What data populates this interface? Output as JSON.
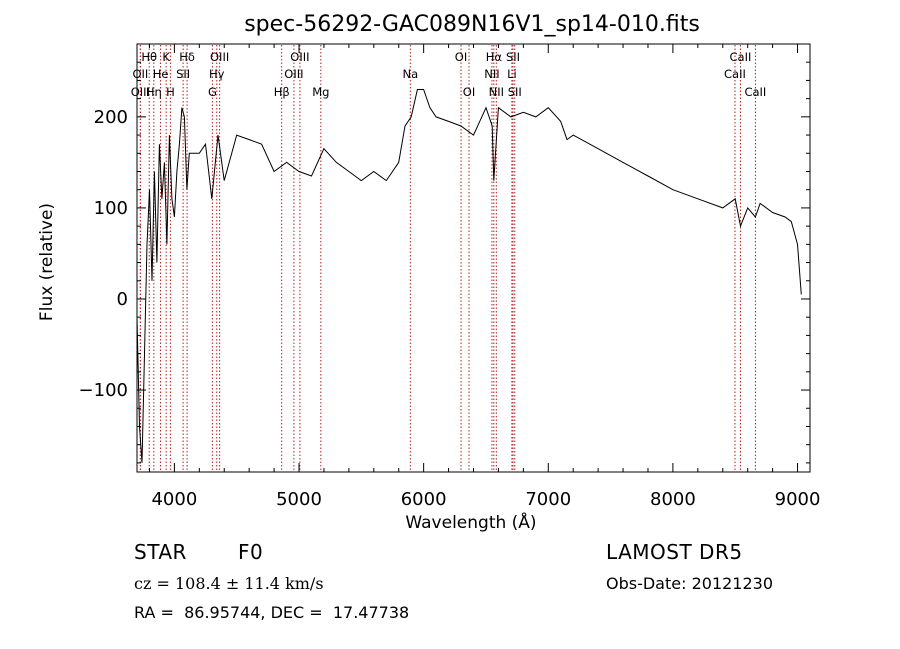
{
  "chart_data": {
    "type": "line",
    "title": "spec-56292-GAC089N16V1_sp14-010.fits",
    "xlabel": "Wavelength (Å)",
    "ylabel": "Flux (relative)",
    "xlim": [
      3700,
      9100
    ],
    "ylim": [
      -190,
      280
    ],
    "xticks": [
      4000,
      5000,
      6000,
      7000,
      8000,
      9000
    ],
    "xtick_labels": [
      "4000",
      "5000",
      "6000",
      "7000",
      "8000",
      "9000"
    ],
    "yticks": [
      -100,
      0,
      100,
      200
    ],
    "ytick_labels": [
      "−100",
      "0",
      "100",
      "200"
    ],
    "grid": false,
    "line_color": "#000000",
    "marker_color": "#b22222",
    "spectral_lines": [
      {
        "label": "Hθ",
        "wavelength": 3798,
        "row": 0
      },
      {
        "label": "K",
        "wavelength": 3934,
        "row": 0
      },
      {
        "label": "Hδ",
        "wavelength": 4102,
        "row": 0
      },
      {
        "label": "OIII",
        "wavelength": 4363,
        "row": 0
      },
      {
        "label": "OIII",
        "wavelength": 5007,
        "row": 0
      },
      {
        "label": "OI",
        "wavelength": 6300,
        "row": 0
      },
      {
        "label": "Hα",
        "wavelength": 6563,
        "row": 0
      },
      {
        "label": "SII",
        "wavelength": 6717,
        "row": 0
      },
      {
        "label": "CaII",
        "wavelength": 8542,
        "row": 0
      },
      {
        "label": "OII",
        "wavelength": 3727,
        "row": 1
      },
      {
        "label": "He",
        "wavelength": 3889,
        "row": 1
      },
      {
        "label": "SII",
        "wavelength": 4070,
        "row": 1
      },
      {
        "label": "Hγ",
        "wavelength": 4340,
        "row": 1
      },
      {
        "label": "OIII",
        "wavelength": 4959,
        "row": 1
      },
      {
        "label": "Na",
        "wavelength": 5893,
        "row": 1
      },
      {
        "label": "NII",
        "wavelength": 6548,
        "row": 1
      },
      {
        "label": "Li",
        "wavelength": 6708,
        "row": 1
      },
      {
        "label": "CaII",
        "wavelength": 8498,
        "row": 1
      },
      {
        "label": "OIII",
        "wavelength": 3727,
        "row": 2
      },
      {
        "label": "Hη",
        "wavelength": 3835,
        "row": 2
      },
      {
        "label": "H",
        "wavelength": 3968,
        "row": 2
      },
      {
        "label": "G",
        "wavelength": 4305,
        "row": 2
      },
      {
        "label": "Hβ",
        "wavelength": 4861,
        "row": 2
      },
      {
        "label": "Mg",
        "wavelength": 5175,
        "row": 2
      },
      {
        "label": "OI",
        "wavelength": 6364,
        "row": 2
      },
      {
        "label": "NII",
        "wavelength": 6583,
        "row": 2
      },
      {
        "label": "SII",
        "wavelength": 6731,
        "row": 2
      },
      {
        "label": "CaII",
        "wavelength": 8662,
        "row": 2
      }
    ],
    "series": [
      {
        "x": [
          3700,
          3720,
          3740,
          3760,
          3780,
          3800,
          3820,
          3840,
          3860,
          3880,
          3900,
          3920,
          3940,
          3960,
          3980,
          4000,
          4020,
          4040,
          4060,
          4080,
          4100,
          4120,
          4150,
          4200,
          4250,
          4300,
          4350,
          4400,
          4500,
          4600,
          4700,
          4800,
          4900,
          5000,
          5100,
          5200,
          5300,
          5400,
          5500,
          5600,
          5700,
          5800,
          5850,
          5900,
          5950,
          6000,
          6050,
          6100,
          6200,
          6300,
          6400,
          6500,
          6550,
          6563,
          6600,
          6700,
          6800,
          6900,
          7000,
          7100,
          7150,
          7200,
          7400,
          7600,
          7800,
          8000,
          8200,
          8400,
          8500,
          8542,
          8600,
          8662,
          8700,
          8800,
          8900,
          8950,
          9000,
          9030
        ],
        "y": [
          -20,
          -140,
          -180,
          -60,
          60,
          120,
          20,
          140,
          40,
          170,
          110,
          150,
          60,
          180,
          110,
          90,
          140,
          170,
          210,
          200,
          120,
          160,
          160,
          160,
          170,
          110,
          180,
          130,
          180,
          175,
          170,
          140,
          150,
          140,
          135,
          165,
          150,
          140,
          130,
          140,
          130,
          150,
          190,
          200,
          230,
          230,
          210,
          200,
          195,
          190,
          180,
          210,
          190,
          130,
          210,
          200,
          205,
          200,
          210,
          195,
          175,
          180,
          165,
          150,
          135,
          120,
          110,
          100,
          110,
          80,
          100,
          90,
          105,
          95,
          90,
          85,
          60,
          5
        ]
      }
    ],
    "annotations": {
      "object_class": "STAR",
      "subclass": "F0",
      "survey": "LAMOST DR5",
      "cz": "cz = 108.4 ± 11.4 km/s",
      "obs_date": "Obs-Date: 20121230",
      "coords": "RA =  86.95744, DEC =  17.47738"
    }
  }
}
